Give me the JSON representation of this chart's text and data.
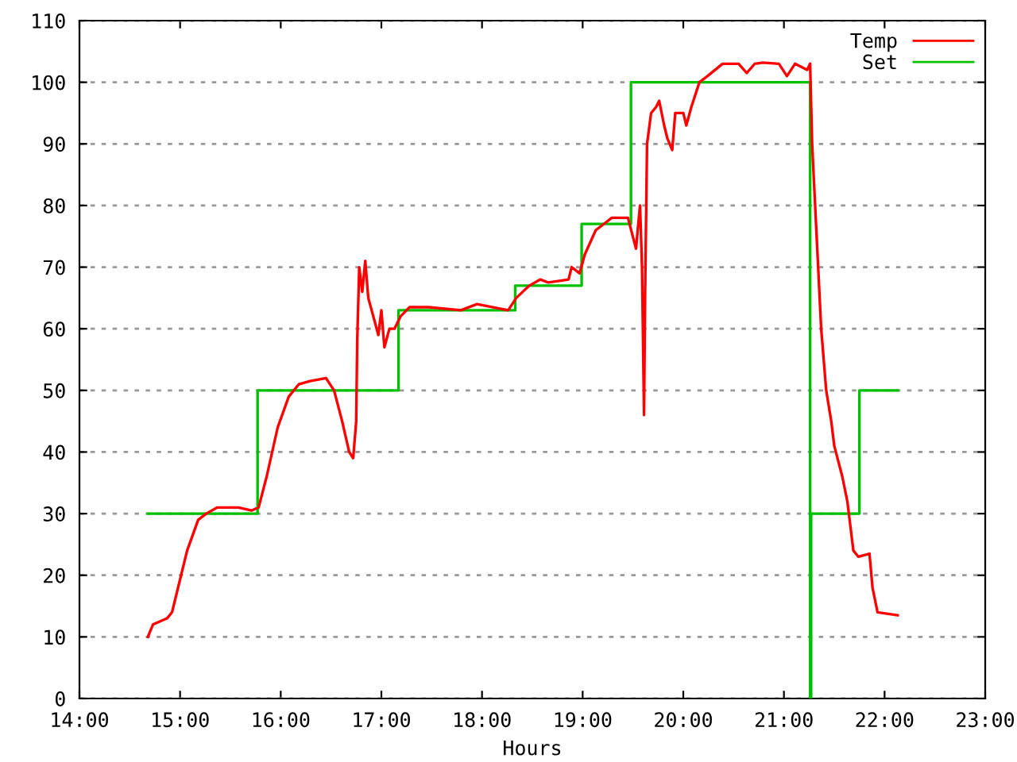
{
  "chart_data": {
    "type": "line",
    "xlabel": "Hours",
    "xlim": [
      14,
      23
    ],
    "ylim": [
      0,
      110
    ],
    "xticks": [
      {
        "value": 14,
        "label": "14:00"
      },
      {
        "value": 15,
        "label": "15:00"
      },
      {
        "value": 16,
        "label": "16:00"
      },
      {
        "value": 17,
        "label": "17:00"
      },
      {
        "value": 18,
        "label": "18:00"
      },
      {
        "value": 19,
        "label": "19:00"
      },
      {
        "value": 20,
        "label": "20:00"
      },
      {
        "value": 21,
        "label": "21:00"
      },
      {
        "value": 22,
        "label": "22:00"
      },
      {
        "value": 23,
        "label": "23:00"
      }
    ],
    "yticks": [
      0,
      10,
      20,
      30,
      40,
      50,
      60,
      70,
      80,
      90,
      100,
      110
    ],
    "grid": "y",
    "legend": "top right",
    "marker": "none",
    "line_style": "solid",
    "series": [
      {
        "name": "Temp",
        "color": "#ff0000",
        "x": [
          14.68,
          14.73,
          14.87,
          14.92,
          14.98,
          15.07,
          15.18,
          15.26,
          15.37,
          15.58,
          15.71,
          15.78,
          15.86,
          15.97,
          16.08,
          16.18,
          16.29,
          16.45,
          16.53,
          16.61,
          16.68,
          16.72,
          16.75,
          16.76,
          16.78,
          16.81,
          16.84,
          16.87,
          16.92,
          16.97,
          17.0,
          17.03,
          17.08,
          17.13,
          17.19,
          17.28,
          17.47,
          17.79,
          17.95,
          18.26,
          18.34,
          18.47,
          18.58,
          18.66,
          18.86,
          18.89,
          18.97,
          19.02,
          19.13,
          19.29,
          19.45,
          19.53,
          19.57,
          19.59,
          19.61,
          19.62,
          19.64,
          19.68,
          19.73,
          19.76,
          19.81,
          19.84,
          19.89,
          19.92,
          20.0,
          20.03,
          20.08,
          20.16,
          20.24,
          20.39,
          20.55,
          20.63,
          20.71,
          20.79,
          20.95,
          21.03,
          21.11,
          21.23,
          21.26,
          21.28,
          21.31,
          21.34,
          21.37,
          21.42,
          21.47,
          21.5,
          21.58,
          21.63,
          21.66,
          21.69,
          21.74,
          21.85,
          21.88,
          21.93,
          22.13
        ],
        "values": [
          10,
          12,
          13,
          14,
          18,
          24,
          29,
          30,
          31,
          31,
          30.5,
          31,
          36,
          44,
          49,
          51,
          51.5,
          52,
          50,
          45,
          40,
          39,
          45,
          58,
          70,
          66,
          71,
          65,
          62,
          59,
          63,
          57,
          60,
          60,
          62,
          63.5,
          63.5,
          63,
          64,
          63,
          65,
          67,
          68,
          67.5,
          68,
          70,
          69,
          72,
          76,
          78,
          78,
          73,
          80,
          70,
          46,
          65,
          90,
          95,
          96,
          97,
          93,
          91,
          89,
          95,
          95,
          93,
          96,
          100,
          101,
          103,
          103,
          101.5,
          103,
          103.2,
          103,
          101,
          103,
          102,
          103,
          90,
          80,
          70,
          60,
          50,
          45,
          41,
          36,
          32,
          28,
          24,
          23,
          23.5,
          18,
          14,
          13.5
        ]
      },
      {
        "name": "Set",
        "color": "#00c000",
        "type": "step",
        "x": [
          14.68,
          15.77,
          17.17,
          18.33,
          18.99,
          19.48,
          21.26,
          21.27,
          21.75,
          22.13
        ],
        "values": [
          30,
          50,
          63,
          67,
          77,
          100,
          0,
          30,
          50,
          50
        ]
      }
    ]
  }
}
